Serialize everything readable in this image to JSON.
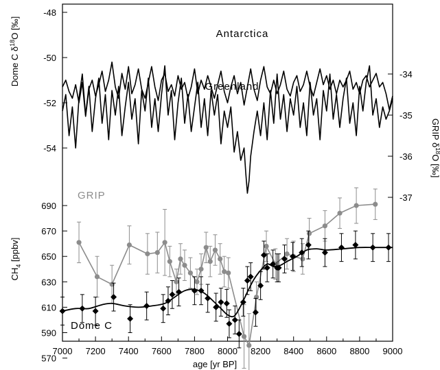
{
  "chart_data": {
    "type": "line",
    "title": "",
    "xlabel": "age [yr BP]",
    "xlim": [
      7000,
      9000
    ],
    "x_ticks": [
      7000,
      7200,
      7400,
      7600,
      7800,
      8000,
      8200,
      8400,
      8600,
      8800,
      9000
    ],
    "left_top_axis": {
      "label": "Dome C δ18O [‰]",
      "label_parts": [
        "Dome C ",
        "δ",
        "18",
        "O [‰]"
      ],
      "range": [
        -55,
        -48
      ],
      "ticks": [
        -48,
        -50,
        -52,
        -54
      ]
    },
    "right_axis": {
      "label": "GRIP δ18O [‰]",
      "label_parts": [
        "GRIP ",
        "δ",
        "18",
        "O [‰]"
      ],
      "ticks": [
        -34,
        -35,
        -36,
        -37
      ]
    },
    "left_bottom_axis": {
      "label": "CH4 [ppbv]",
      "label_parts": [
        "CH",
        "4",
        " [ppbv]"
      ],
      "range": [
        560,
        700
      ],
      "ticks": [
        570,
        590,
        610,
        630,
        650,
        670,
        690
      ]
    },
    "series": [
      {
        "name": "Antarctica",
        "axis": "left_top",
        "style": "line",
        "x": [
          7000,
          7020,
          7040,
          7060,
          7080,
          7100,
          7120,
          7140,
          7160,
          7180,
          7200,
          7220,
          7240,
          7260,
          7280,
          7300,
          7320,
          7340,
          7360,
          7380,
          7400,
          7420,
          7440,
          7460,
          7480,
          7500,
          7520,
          7540,
          7560,
          7580,
          7600,
          7620,
          7640,
          7660,
          7680,
          7700,
          7720,
          7740,
          7760,
          7780,
          7800,
          7820,
          7840,
          7860,
          7880,
          7900,
          7920,
          7940,
          7960,
          7980,
          8000,
          8020,
          8040,
          8060,
          8080,
          8100,
          8120,
          8140,
          8160,
          8180,
          8200,
          8220,
          8240,
          8260,
          8280,
          8300,
          8320,
          8340,
          8360,
          8380,
          8400,
          8420,
          8440,
          8460,
          8480,
          8500,
          8520,
          8540,
          8560,
          8580,
          8600,
          8620,
          8640,
          8660,
          8680,
          8700,
          8720,
          8740,
          8760,
          8780,
          8800,
          8820,
          8840,
          8860,
          8880,
          8900,
          8920,
          8940,
          8960,
          8980,
          9000
        ],
        "values": [
          -51.3,
          -51.0,
          -51.5,
          -51.8,
          -51.2,
          -52.0,
          -51.1,
          -52.6,
          -51.4,
          -51.0,
          -51.7,
          -51.2,
          -50.6,
          -51.5,
          -51.0,
          -50.2,
          -51.3,
          -51.8,
          -50.7,
          -51.4,
          -50.4,
          -51.6,
          -51.2,
          -50.5,
          -51.4,
          -51.8,
          -51.1,
          -50.4,
          -51.3,
          -51.9,
          -51.0,
          -50.7,
          -51.5,
          -51.2,
          -51.7,
          -50.8,
          -51.4,
          -51.1,
          -51.8,
          -51.3,
          -50.5,
          -51.6,
          -51.0,
          -51.4,
          -50.8,
          -51.3,
          -51.8,
          -51.2,
          -50.6,
          -51.5,
          -52.0,
          -51.3,
          -50.8,
          -51.6,
          -51.1,
          -52.1,
          -51.3,
          -50.5,
          -51.4,
          -51.9,
          -51.0,
          -50.4,
          -51.3,
          -51.6,
          -51.0,
          -51.6,
          -51.2,
          -50.6,
          -51.4,
          -51.7,
          -51.1,
          -50.8,
          -51.5,
          -51.2,
          -50.6,
          -51.3,
          -51.7,
          -51.1,
          -50.5,
          -51.2,
          -50.8,
          -51.4,
          -51.0,
          -51.6,
          -51.0,
          -51.3,
          -51.0,
          -50.6,
          -51.4,
          -51.1,
          -51.6,
          -51.0,
          -50.8,
          -51.3,
          -51.0,
          -50.7,
          -51.3,
          -51.1,
          -51.6,
          -52.3,
          -51.7
        ]
      },
      {
        "name": "Greenland",
        "axis": "right",
        "style": "line",
        "x": [
          7000,
          7020,
          7040,
          7060,
          7080,
          7100,
          7120,
          7140,
          7160,
          7180,
          7200,
          7220,
          7240,
          7260,
          7280,
          7300,
          7320,
          7340,
          7360,
          7380,
          7400,
          7420,
          7440,
          7460,
          7480,
          7500,
          7520,
          7540,
          7560,
          7580,
          7600,
          7620,
          7640,
          7660,
          7680,
          7700,
          7720,
          7740,
          7760,
          7780,
          7800,
          7820,
          7840,
          7860,
          7880,
          7900,
          7920,
          7940,
          7960,
          7980,
          8000,
          8020,
          8040,
          8060,
          8080,
          8100,
          8110,
          8120,
          8130,
          8140,
          8160,
          8180,
          8200,
          8220,
          8240,
          8260,
          8280,
          8300,
          8320,
          8340,
          8360,
          8380,
          8400,
          8420,
          8440,
          8460,
          8480,
          8500,
          8520,
          8540,
          8560,
          8580,
          8600,
          8620,
          8640,
          8660,
          8680,
          8700,
          8720,
          8740,
          8760,
          8780,
          8800,
          8820,
          8840,
          8860,
          8880,
          8900,
          8920,
          8940,
          8960,
          8980,
          9000
        ],
        "values": [
          -34.9,
          -34.5,
          -35.5,
          -34.8,
          -35.8,
          -34.6,
          -34.0,
          -35.0,
          -34.3,
          -35.4,
          -34.6,
          -34.1,
          -35.2,
          -34.5,
          -35.6,
          -34.4,
          -35.0,
          -34.3,
          -35.5,
          -34.8,
          -34.2,
          -35.1,
          -34.6,
          -35.7,
          -34.4,
          -34.9,
          -34.1,
          -35.3,
          -34.6,
          -35.4,
          -34.5,
          -33.8,
          -35.0,
          -34.4,
          -35.6,
          -34.7,
          -34.1,
          -35.2,
          -34.5,
          -35.4,
          -34.8,
          -34.2,
          -35.3,
          -34.6,
          -35.5,
          -34.4,
          -35.0,
          -34.5,
          -35.7,
          -34.9,
          -35.3,
          -34.8,
          -35.9,
          -35.4,
          -36.1,
          -35.8,
          -36.4,
          -36.9,
          -36.6,
          -36.0,
          -35.4,
          -34.9,
          -35.5,
          -34.7,
          -35.6,
          -34.4,
          -35.2,
          -34.0,
          -35.1,
          -34.5,
          -35.4,
          -34.6,
          -35.0,
          -34.3,
          -35.3,
          -34.7,
          -35.5,
          -34.2,
          -35.0,
          -34.6,
          -35.6,
          -34.4,
          -34.9,
          -34.0,
          -35.1,
          -34.5,
          -35.3,
          -34.6,
          -34.1,
          -35.2,
          -34.7,
          -35.5,
          -34.3,
          -34.9,
          -34.2,
          -33.8,
          -35.0,
          -34.6,
          -35.3,
          -34.8,
          -35.1,
          -34.9,
          -34.6
        ]
      },
      {
        "name": "GRIP",
        "axis": "left_bottom",
        "style": "points-with-errorbars",
        "color": "#8c8c8c",
        "x": [
          7100,
          7210,
          7300,
          7405,
          7515,
          7575,
          7620,
          7650,
          7690,
          7715,
          7740,
          7775,
          7815,
          7840,
          7870,
          7895,
          7925,
          7955,
          7980,
          8005,
          8100,
          8130,
          8175,
          8235,
          8290,
          8360,
          8400,
          8455,
          8495,
          8590,
          8680,
          8780,
          8895
        ],
        "values": [
          661,
          634,
          628,
          659,
          652,
          653,
          661,
          646,
          630,
          648,
          643,
          637,
          630,
          640,
          657,
          646,
          655,
          648,
          638,
          637,
          587,
          580,
          618,
          658,
          644,
          652,
          650,
          648,
          668,
          674,
          684,
          690,
          691
        ],
        "errors": [
          16,
          16,
          15,
          15,
          16,
          16,
          26,
          12,
          10,
          12,
          12,
          12,
          10,
          12,
          12,
          12,
          12,
          12,
          12,
          12,
          25,
          25,
          12,
          12,
          12,
          12,
          12,
          12,
          12,
          12,
          12,
          14,
          12
        ]
      },
      {
        "name": "Dome C",
        "axis": "left_bottom",
        "style": "points-with-errorbars",
        "color": "#000000",
        "x": [
          7000,
          7120,
          7200,
          7310,
          7410,
          7510,
          7610,
          7640,
          7665,
          7705,
          7800,
          7840,
          7880,
          7930,
          7960,
          7995,
          8010,
          8045,
          8070,
          8095,
          8120,
          8140,
          8170,
          8200,
          8220,
          8240,
          8275,
          8300,
          8310,
          8345,
          8395,
          8450,
          8490,
          8590,
          8690,
          8775,
          8880,
          8975
        ],
        "values": [
          607,
          609,
          607,
          618,
          601,
          611,
          609,
          615,
          620,
          622,
          623,
          623,
          617,
          610,
          614,
          613,
          597,
          600,
          589,
          614,
          631,
          634,
          606,
          627,
          651,
          641,
          644,
          641,
          641,
          648,
          650,
          653,
          659,
          653,
          657,
          659,
          657,
          657
        ],
        "errors": [
          11,
          11,
          11,
          11,
          11,
          11,
          11,
          11,
          11,
          11,
          11,
          11,
          11,
          11,
          11,
          11,
          11,
          11,
          11,
          11,
          11,
          11,
          11,
          11,
          11,
          11,
          11,
          11,
          11,
          11,
          11,
          11,
          11,
          11,
          11,
          11,
          11,
          11
        ]
      },
      {
        "name": "Dome C",
        "axis": "left_bottom",
        "style": "smooth-line",
        "color": "#000000",
        "x": [
          7000,
          7080,
          7160,
          7240,
          7300,
          7380,
          7460,
          7540,
          7620,
          7680,
          7740,
          7800,
          7860,
          7920,
          7960,
          8000,
          8040,
          8080,
          8120,
          8160,
          8200,
          8240,
          8280,
          8320,
          8360,
          8420,
          8480,
          8540,
          8600,
          8700,
          8800,
          8900,
          9000
        ],
        "values": [
          607,
          609,
          609,
          612,
          613,
          611,
          610,
          611,
          613,
          618,
          623,
          624,
          621,
          614,
          609,
          604,
          603,
          611,
          622,
          632,
          639,
          644,
          642,
          643,
          646,
          650,
          655,
          656,
          655,
          656,
          657,
          657,
          657
        ]
      }
    ]
  }
}
